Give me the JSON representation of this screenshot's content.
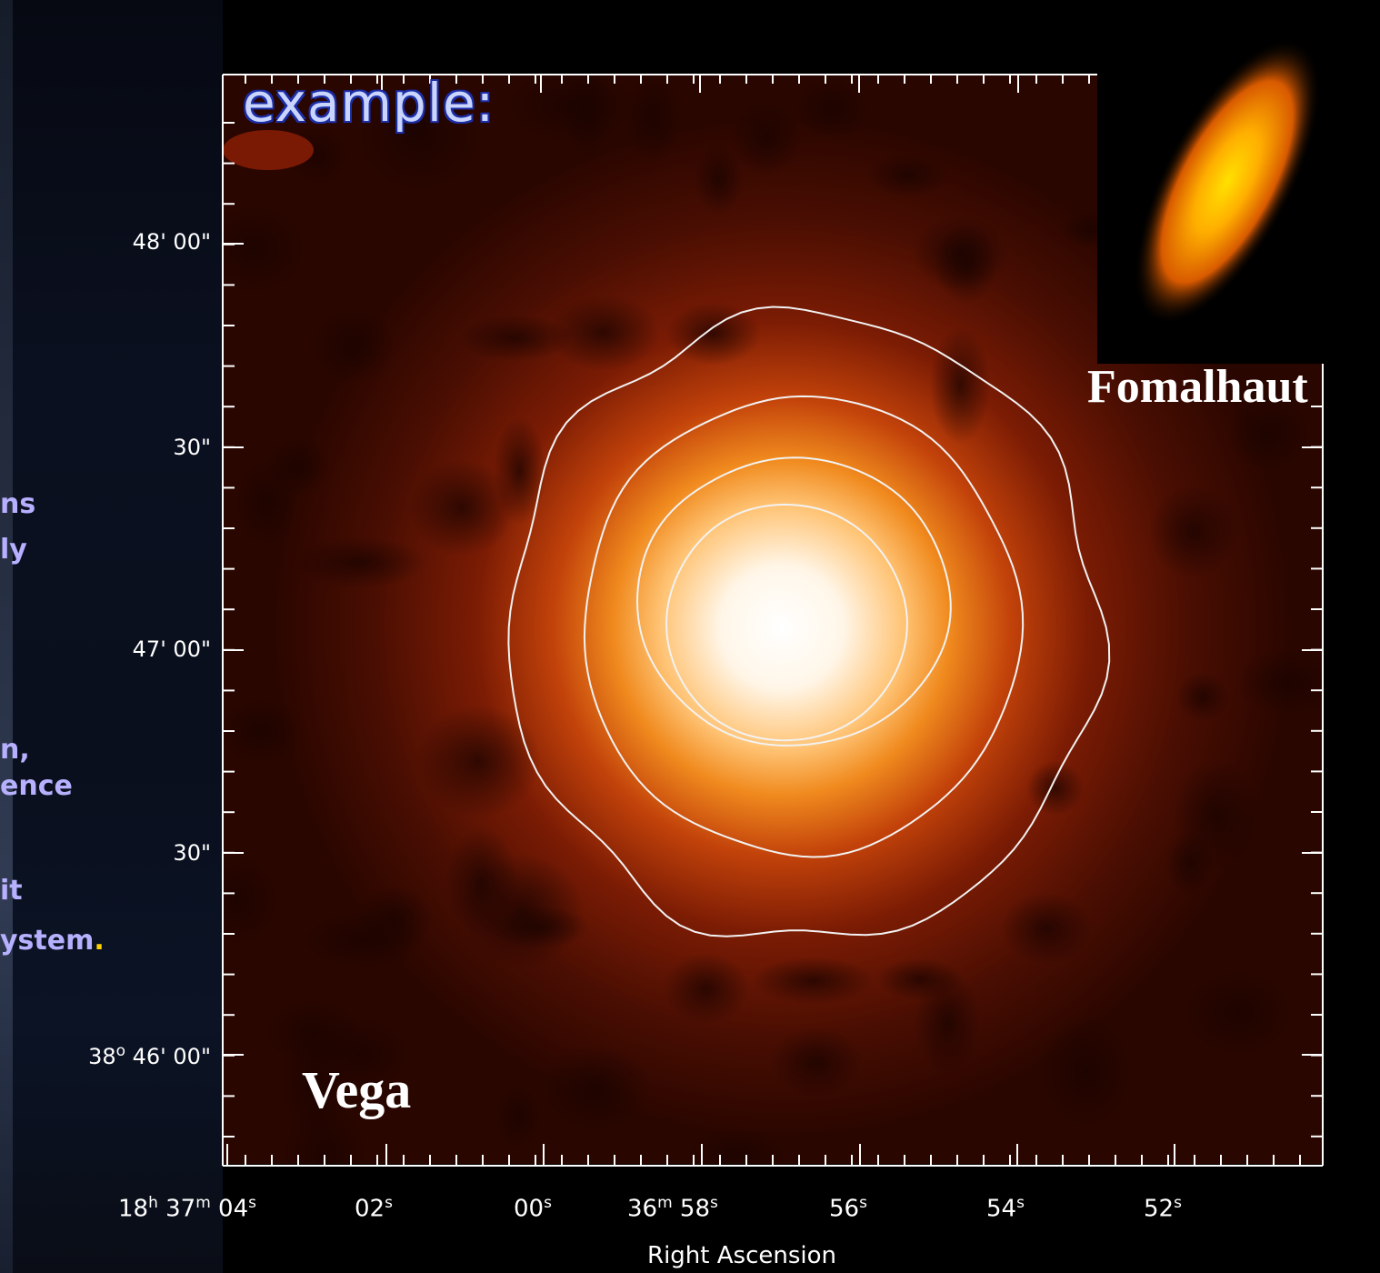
{
  "heading": "example:",
  "side_text": [
    {
      "text": "ns",
      "highlight": ""
    },
    {
      "text": "ly",
      "highlight": ""
    },
    {
      "text": "n,",
      "highlight": ""
    },
    {
      "text": "ence",
      "highlight": ""
    },
    {
      "text": "it",
      "highlight": ""
    },
    {
      "text": "ystem",
      "highlight": "."
    }
  ],
  "labels": {
    "vega": "Vega",
    "fomalhaut": "Fomalhaut"
  },
  "axes": {
    "x_title": "Right Ascension",
    "y_ticks": [
      "48' 00\"",
      "30\"",
      "47' 00\"",
      "30\"",
      "38",
      "46' 00\""
    ],
    "y_first_prefix_sup": "o",
    "x_ticks": [
      {
        "parts": [
          "18",
          "h",
          " 37",
          "m",
          " 04",
          "s"
        ]
      },
      {
        "parts": [
          "02",
          "s"
        ]
      },
      {
        "parts": [
          "00",
          "s"
        ]
      },
      {
        "parts": [
          "36",
          "m",
          " 58",
          "s"
        ]
      },
      {
        "parts": [
          "56",
          "s"
        ]
      },
      {
        "parts": [
          "54",
          "s"
        ]
      },
      {
        "parts": [
          "52",
          "s"
        ]
      }
    ]
  },
  "colors": {
    "heading": "#c9d5ff",
    "side_text": "#b6b0ff",
    "highlight": "#ffd200",
    "contour": "#f2f2f2"
  }
}
